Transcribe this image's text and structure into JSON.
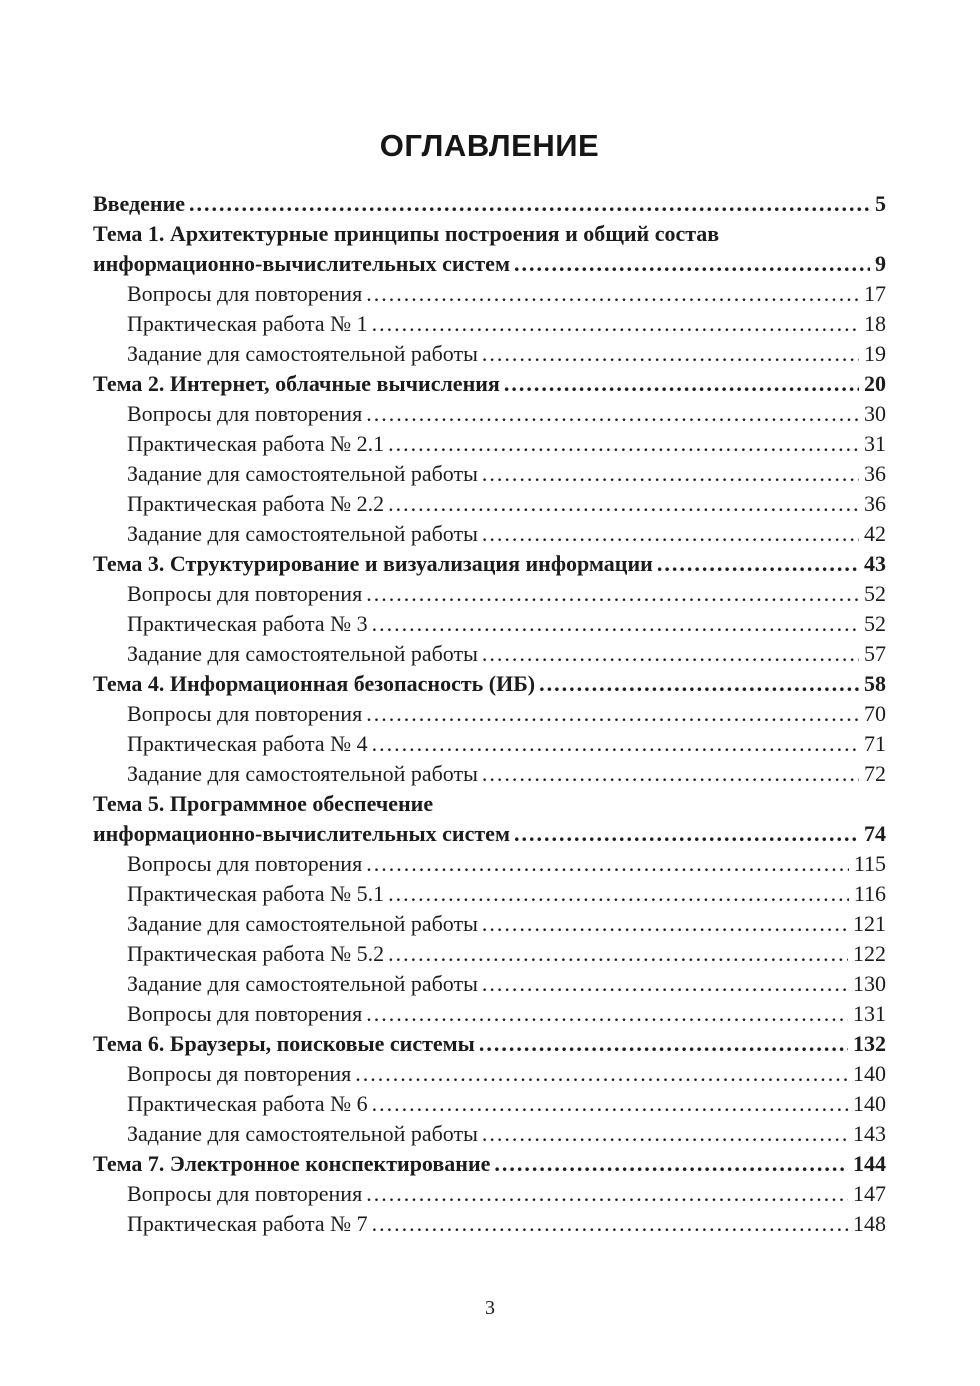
{
  "document": {
    "title": "ОГЛАВЛЕНИЕ",
    "footer_page_number": "3"
  },
  "toc": {
    "entries": [
      {
        "level": 0,
        "bold": true,
        "lines": [
          "Введение"
        ],
        "page": "5"
      },
      {
        "level": 0,
        "bold": true,
        "lines": [
          "Тема 1. Архитектурные принципы построения и общий состав",
          "информационно-вычислительных систем"
        ],
        "page": "9"
      },
      {
        "level": 1,
        "bold": false,
        "lines": [
          "Вопросы для повторения"
        ],
        "page": "17"
      },
      {
        "level": 1,
        "bold": false,
        "lines": [
          "Практическая работа № 1"
        ],
        "page": "18"
      },
      {
        "level": 1,
        "bold": false,
        "lines": [
          "Задание для самостоятельной работы"
        ],
        "page": "19"
      },
      {
        "level": 0,
        "bold": true,
        "lines": [
          "Тема 2. Интернет, облачные вычисления"
        ],
        "page": "20"
      },
      {
        "level": 1,
        "bold": false,
        "lines": [
          "Вопросы для повторения"
        ],
        "page": "30"
      },
      {
        "level": 1,
        "bold": false,
        "lines": [
          "Практическая работа № 2.1"
        ],
        "page": "31"
      },
      {
        "level": 1,
        "bold": false,
        "lines": [
          "Задание для самостоятельной работы"
        ],
        "page": "36"
      },
      {
        "level": 1,
        "bold": false,
        "lines": [
          "Практическая работа № 2.2"
        ],
        "page": "36"
      },
      {
        "level": 1,
        "bold": false,
        "lines": [
          "Задание для самостоятельной работы"
        ],
        "page": "42"
      },
      {
        "level": 0,
        "bold": true,
        "lines": [
          "Тема 3. Структурирование и визуализация информации"
        ],
        "page": "43"
      },
      {
        "level": 1,
        "bold": false,
        "lines": [
          "Вопросы для повторения"
        ],
        "page": "52"
      },
      {
        "level": 1,
        "bold": false,
        "lines": [
          "Практическая работа № 3"
        ],
        "page": "52"
      },
      {
        "level": 1,
        "bold": false,
        "lines": [
          "Задание для самостоятельной работы"
        ],
        "page": "57"
      },
      {
        "level": 0,
        "bold": true,
        "lines": [
          "Тема 4. Информационная безопасность (ИБ)"
        ],
        "page": "58"
      },
      {
        "level": 1,
        "bold": false,
        "lines": [
          "Вопросы для повторения"
        ],
        "page": "70"
      },
      {
        "level": 1,
        "bold": false,
        "lines": [
          "Практическая работа № 4"
        ],
        "page": "71"
      },
      {
        "level": 1,
        "bold": false,
        "lines": [
          "Задание для самостоятельной работы"
        ],
        "page": "72"
      },
      {
        "level": 0,
        "bold": true,
        "lines": [
          "Тема 5. Программное обеспечение",
          "информационно-вычислительных систем"
        ],
        "page": "74"
      },
      {
        "level": 1,
        "bold": false,
        "lines": [
          "Вопросы для повторения"
        ],
        "page": "115"
      },
      {
        "level": 1,
        "bold": false,
        "lines": [
          "Практическая работа № 5.1"
        ],
        "page": "116"
      },
      {
        "level": 1,
        "bold": false,
        "lines": [
          "Задание для самостоятельной работы"
        ],
        "page": "121"
      },
      {
        "level": 1,
        "bold": false,
        "lines": [
          "Практическая работа № 5.2"
        ],
        "page": "122"
      },
      {
        "level": 1,
        "bold": false,
        "lines": [
          "Задание для самостоятельной работы"
        ],
        "page": "130"
      },
      {
        "level": 1,
        "bold": false,
        "lines": [
          "Вопросы для повторения"
        ],
        "page": "131"
      },
      {
        "level": 0,
        "bold": true,
        "lines": [
          "Тема 6. Браузеры, поисковые системы"
        ],
        "page": "132"
      },
      {
        "level": 1,
        "bold": false,
        "lines": [
          "Вопросы дя повторения"
        ],
        "page": "140"
      },
      {
        "level": 1,
        "bold": false,
        "lines": [
          "Практическая работа № 6"
        ],
        "page": "140"
      },
      {
        "level": 1,
        "bold": false,
        "lines": [
          "Задание для самостоятельной работы"
        ],
        "page": "143"
      },
      {
        "level": 0,
        "bold": true,
        "lines": [
          "Тема 7. Электронное конспектирование"
        ],
        "page": "144"
      },
      {
        "level": 1,
        "bold": false,
        "lines": [
          "Вопросы для повторения"
        ],
        "page": "147"
      },
      {
        "level": 1,
        "bold": false,
        "lines": [
          "Практическая работа № 7"
        ],
        "page": "148"
      }
    ]
  }
}
